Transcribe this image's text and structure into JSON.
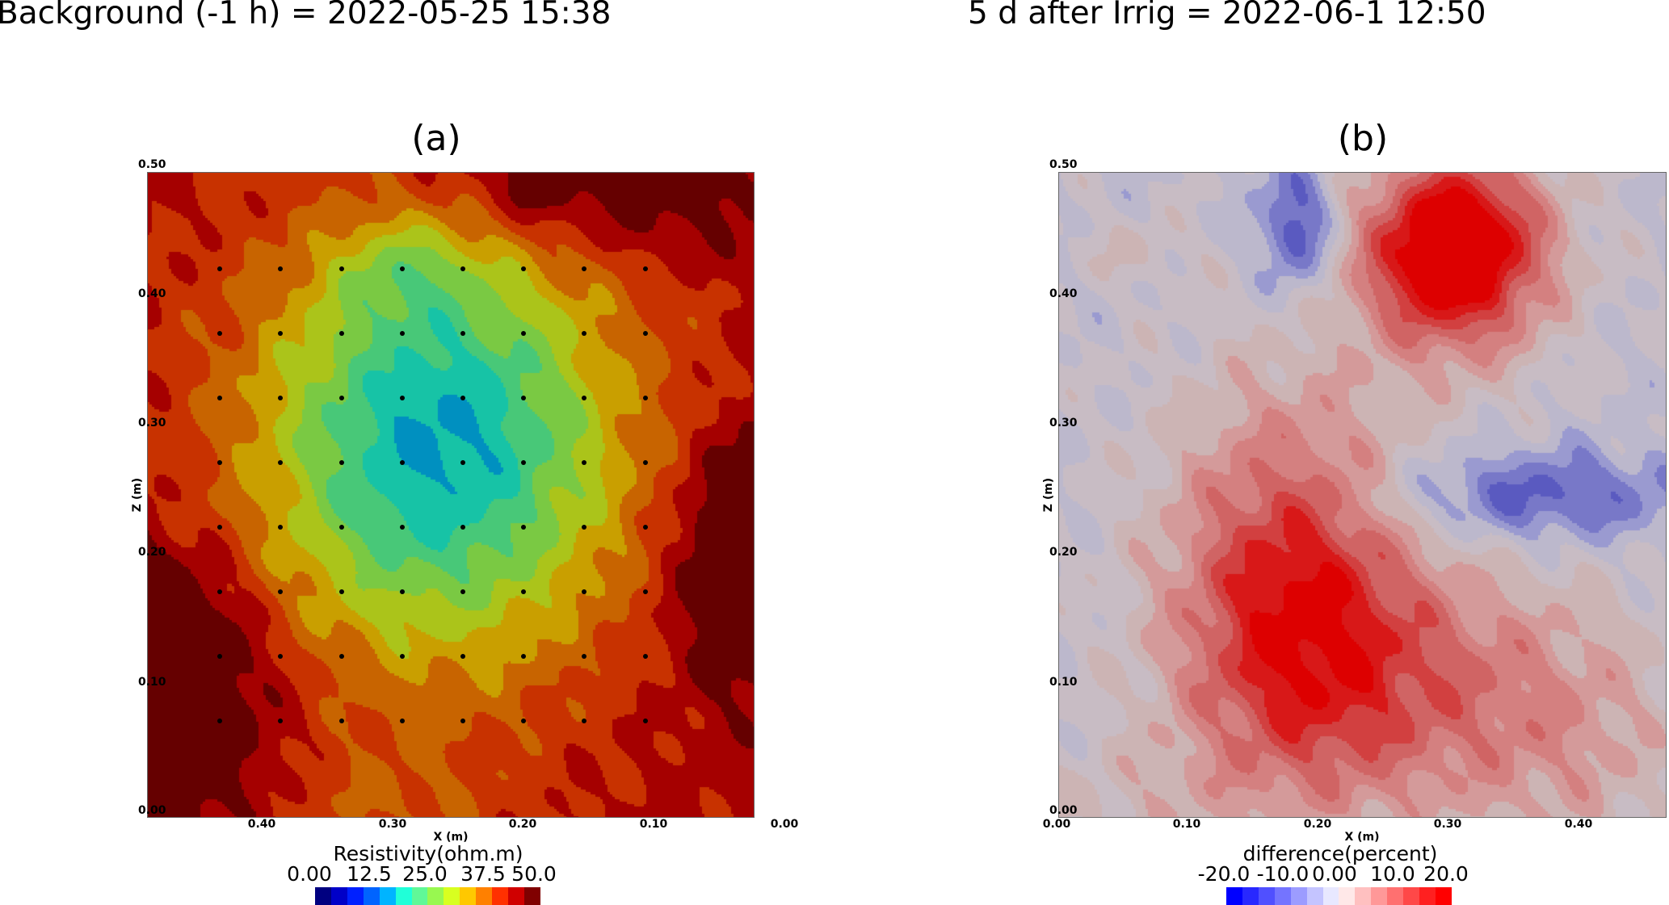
{
  "chart_data": [
    {
      "type": "heatmap",
      "title": "Background (-1 h) = 2022-05-25 15:38",
      "panel_label": "(a)",
      "xlabel": "X (m)",
      "ylabel": "Z (m)",
      "xlim": [
        0.5,
        0.0
      ],
      "ylim": [
        0.0,
        0.5
      ],
      "x_ticks": [
        "0.40",
        "0.30",
        "0.20",
        "0.10",
        "0.00"
      ],
      "z_ticks": [
        "0.50",
        "0.40",
        "0.30",
        "0.20",
        "0.10",
        "0.00"
      ],
      "colorbar": {
        "title": "Resistivity(ohm.m)",
        "range": [
          0,
          50
        ],
        "ticks": [
          "0.00",
          "12.5",
          "25.0",
          "37.5",
          "50.0"
        ],
        "colors": [
          "#000080",
          "#0000c8",
          "#0020ff",
          "#0064ff",
          "#00b4ff",
          "#20ffd8",
          "#60f898",
          "#98f850",
          "#d8ff20",
          "#ffc800",
          "#ff8000",
          "#ff3000",
          "#d00000",
          "#800000"
        ]
      },
      "electrodes": {
        "x": [
          0.44,
          0.39,
          0.34,
          0.29,
          0.24,
          0.19,
          0.14,
          0.09
        ],
        "z": [
          0.425,
          0.375,
          0.325,
          0.275,
          0.225,
          0.175,
          0.125,
          0.075
        ]
      }
    },
    {
      "type": "heatmap",
      "title": "5 d after Irrig = 2022-06-1 12:50",
      "panel_label": "(b)",
      "xlabel": "X (m)",
      "ylabel": "Z (m)",
      "xlim": [
        0.0,
        0.5
      ],
      "ylim": [
        0.0,
        0.5
      ],
      "x_ticks": [
        "0.00",
        "0.10",
        "0.20",
        "0.30",
        "0.40"
      ],
      "z_ticks": [
        "0.50",
        "0.40",
        "0.30",
        "0.20",
        "0.10",
        "0.00"
      ],
      "colorbar": {
        "title": "difference(percent)",
        "range": [
          -20,
          20
        ],
        "ticks": [
          "-20.0",
          "-10.0",
          "0.00",
          "10.0",
          "20.0"
        ],
        "colors": [
          "#0000ff",
          "#2828ff",
          "#5050ff",
          "#7474ff",
          "#9c9cff",
          "#c4c4ff",
          "#e8e8ff",
          "#ffe8e8",
          "#ffc0c0",
          "#ff9898",
          "#ff7070",
          "#ff4848",
          "#ff2020",
          "#ff0000"
        ]
      }
    }
  ]
}
